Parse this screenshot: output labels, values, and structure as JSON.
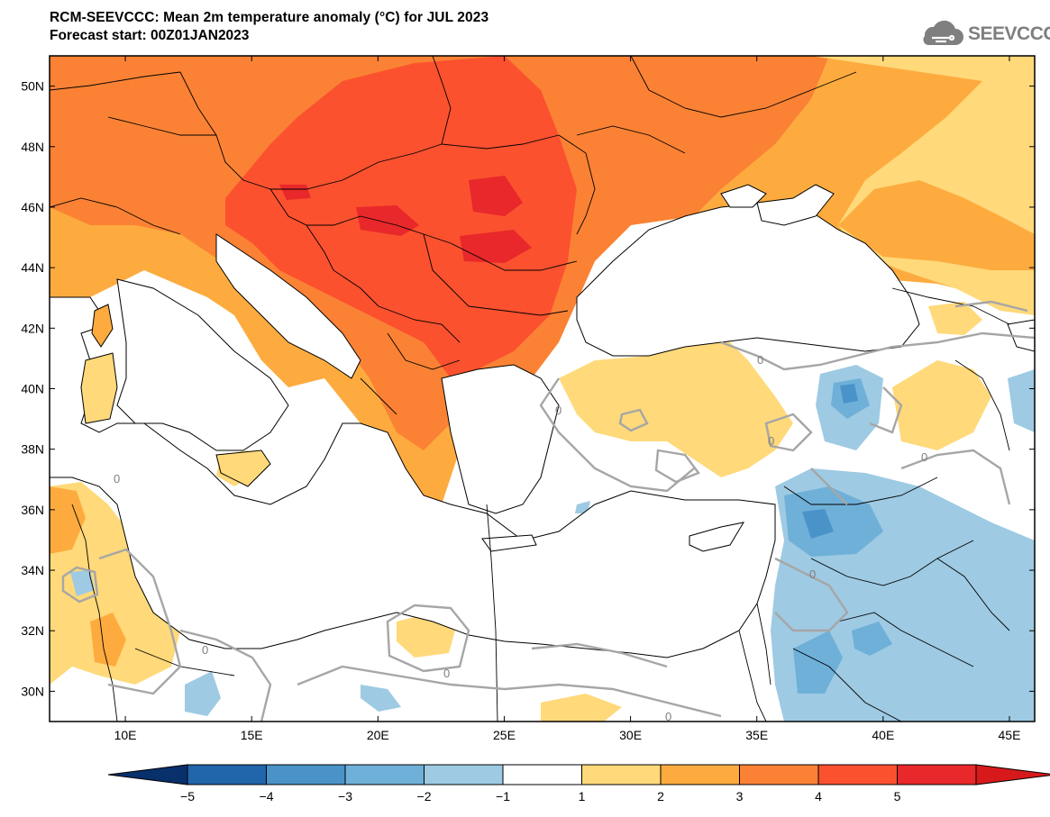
{
  "header": {
    "title": "RCM-SEEVCCC: Mean 2m temperature anomaly (°C) for JUL 2023",
    "subtitle": "Forecast start: 00Z01JAN2023",
    "logo_text": "SEEVCCC"
  },
  "map": {
    "variable": "Mean 2m temperature anomaly",
    "unit": "°C",
    "projection": "lat-lon",
    "lon_range": [
      7,
      46
    ],
    "lat_range": [
      29,
      51
    ],
    "lon_ticks": [
      "10E",
      "15E",
      "20E",
      "25E",
      "30E",
      "35E",
      "40E",
      "45E"
    ],
    "lat_ticks": [
      "50N",
      "48N",
      "46N",
      "44N",
      "42N",
      "40N",
      "38N",
      "36N",
      "34N",
      "32N",
      "30N"
    ],
    "contour_label": "0",
    "colors": {
      "ocean": "#ffffff",
      "land_neutral": "#ffffff",
      "very_warm": "#e8282a",
      "warm4": "#fb512f",
      "warm3": "#fb8234",
      "warm2": "#fdab3f",
      "warm1": "#ffd97a",
      "cool1": "#9ecae3",
      "cool2": "#6fb0d8",
      "cool3": "#4a93c9",
      "borders": "#000000",
      "contour": "#a6a6a6"
    }
  },
  "colorbar": {
    "labels": [
      "−5",
      "−4",
      "−3",
      "−2",
      "−1",
      "1",
      "2",
      "3",
      "4",
      "5"
    ],
    "colors": [
      "#08306b",
      "#2165ab",
      "#4a93c9",
      "#6fb0d8",
      "#9ecae3",
      "#ffffff",
      "#ffd97a",
      "#fdab3f",
      "#fb8234",
      "#fb512f",
      "#e8282a",
      "#d7191c"
    ]
  }
}
